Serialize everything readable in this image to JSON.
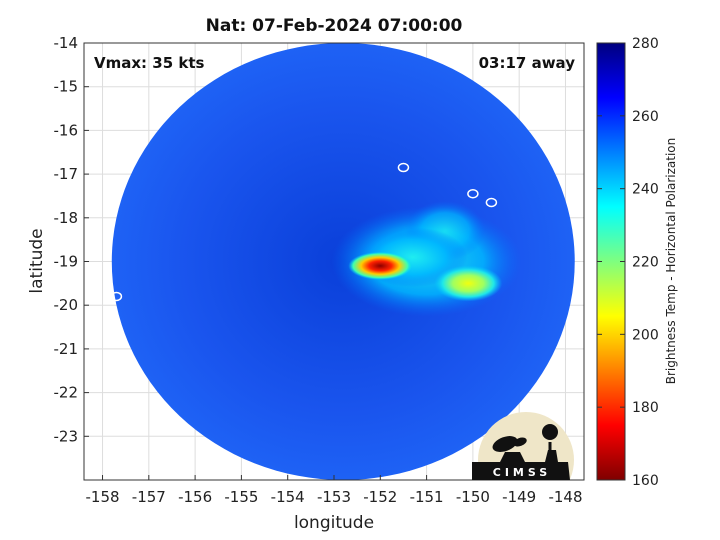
{
  "chart_data": {
    "type": "heatmap",
    "title": "Nat: 07-Feb-2024 07:00:00",
    "xlabel": "longitude",
    "ylabel": "latitude",
    "xlim": [
      -158.4,
      -147.6
    ],
    "ylim": [
      -24,
      -14
    ],
    "x_ticks": [
      "-158",
      "-157",
      "-156",
      "-155",
      "-154",
      "-153",
      "-152",
      "-151",
      "-150",
      "-149",
      "-148"
    ],
    "y_ticks": [
      "-14",
      "-15",
      "-16",
      "-17",
      "-18",
      "-19",
      "-20",
      "-21",
      "-22",
      "-23"
    ],
    "annotations": {
      "vmax": "Vmax: 35 kts",
      "time_away": "03:17 away"
    },
    "colorbar": {
      "label": "Brightness Temp - Horizontal Polarization",
      "range": [
        160,
        280
      ],
      "ticks": [
        "280",
        "260",
        "240",
        "220",
        "200",
        "180",
        "160"
      ],
      "colormap": "jet"
    },
    "swath": {
      "center_lon": -152.8,
      "center_lat": -19.0,
      "radius_deg": 5.0
    },
    "features": [
      {
        "lon": -152.0,
        "lat": -19.1,
        "value": 175
      },
      {
        "lon": -150.1,
        "lat": -19.5,
        "value": 210
      },
      {
        "lon": -151.3,
        "lat": -18.9,
        "value": 235
      }
    ],
    "logo": "CIMSS"
  }
}
